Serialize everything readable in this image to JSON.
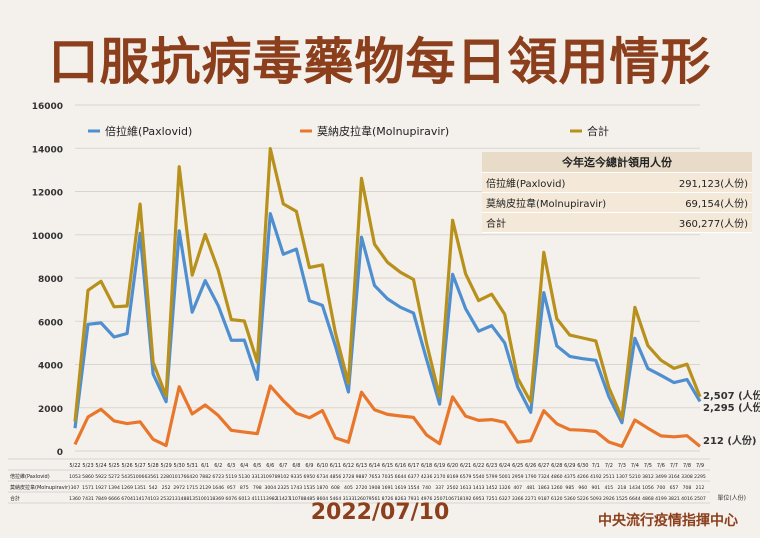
{
  "title": "口服抗病毒藥物每日領用情形",
  "footer": {
    "date": "2022/07/10",
    "org": "中央流行疫情指揮中心",
    "unit_note": "單位(人份)"
  },
  "summary": {
    "caption": "今年迄今總計領用人份",
    "rows": [
      {
        "label": "倍拉維(Paxlovid)",
        "value": "291,123",
        "unit": "(人份)"
      },
      {
        "label": "莫納皮拉韋(Molnupiravir)",
        "value": "69,154",
        "unit": "(人份)"
      },
      {
        "label": "合計",
        "value": "360,277",
        "unit": "(人份)"
      }
    ]
  },
  "chart_data": {
    "type": "line",
    "ylim": [
      0,
      16000
    ],
    "yticks": [
      0,
      2000,
      4000,
      6000,
      8000,
      10000,
      12000,
      14000,
      16000
    ],
    "grid": true,
    "legend_position": "top",
    "categories": [
      "5/22",
      "5/23",
      "5/24",
      "5/25",
      "5/26",
      "5/27",
      "5/28",
      "5/29",
      "5/30",
      "5/31",
      "6/1",
      "6/2",
      "6/3",
      "6/4",
      "6/5",
      "6/6",
      "6/7",
      "6/8",
      "6/9",
      "6/10",
      "6/11",
      "6/12",
      "6/13",
      "6/14",
      "6/15",
      "6/16",
      "6/17",
      "6/18",
      "6/19",
      "6/20",
      "6/21",
      "6/22",
      "6/23",
      "6/24",
      "6/25",
      "6/26",
      "6/27",
      "6/28",
      "6/29",
      "6/30",
      "7/1",
      "7/2",
      "7/3",
      "7/4",
      "7/5",
      "7/6",
      "7/7",
      "7/8",
      "7/9"
    ],
    "series": [
      {
        "name": "倍拉維(Paxlovid)",
        "color": "#4f8fd0",
        "values": [
          1053,
          5860,
          5922,
          5272,
          5435,
          10066,
          3561,
          2280,
          10176,
          6420,
          7882,
          6723,
          5119,
          5130,
          3313,
          10978,
          9102,
          9335,
          6950,
          6734,
          4856,
          2728,
          9887,
          7653,
          7035,
          6644,
          6377,
          4236,
          2170,
          8169,
          6579,
          5540,
          5799,
          5001,
          2959,
          1790,
          7324,
          4860,
          4375,
          4266,
          4192,
          2511,
          1307,
          5210,
          3812,
          3499,
          3164,
          3308,
          2295
        ]
      },
      {
        "name": "莫納皮拉韋(Molnupiravir)",
        "color": "#e8762c",
        "values": [
          307,
          1571,
          1927,
          1394,
          1269,
          1351,
          542,
          252,
          2972,
          1715,
          2129,
          1646,
          957,
          875,
          798,
          3004,
          2325,
          1743,
          1535,
          1870,
          608,
          405,
          2720,
          1908,
          1691,
          1619,
          1554,
          740,
          337,
          2502,
          1613,
          1413,
          1452,
          1326,
          407,
          481,
          1863,
          1260,
          985,
          960,
          901,
          415,
          218,
          1434,
          1056,
          700,
          657,
          708,
          212
        ]
      },
      {
        "name": "合計",
        "color": "#b8901c",
        "values": [
          1360,
          7431,
          7849,
          6666,
          6704,
          11417,
          4103,
          2532,
          13148,
          8135,
          10011,
          8369,
          6076,
          6013,
          4111,
          13982,
          11427,
          11078,
          8485,
          8604,
          5464,
          3133,
          12607,
          9561,
          8726,
          8263,
          7931,
          4976,
          2507,
          10671,
          8192,
          6953,
          7251,
          6327,
          3366,
          2271,
          9187,
          6120,
          5360,
          5226,
          5093,
          2926,
          1525,
          6644,
          4868,
          4199,
          3821,
          4016,
          2507
        ]
      }
    ],
    "end_labels": [
      "2,295 (人份)",
      "212 (人份)",
      "2,507 (人份)"
    ],
    "table_row_labels": [
      "倍拉維(Paxlovid)",
      "莫納皮拉韋(Molnupiravir)",
      "合計"
    ]
  }
}
